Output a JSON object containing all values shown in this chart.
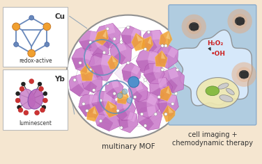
{
  "bg_color": "#f5e6d0",
  "left_box1_label": "Cu",
  "left_box1_sublabel": "redox-active",
  "left_box2_label": "Yb",
  "left_box2_sublabel": "luminescent",
  "center_label": "multinary MOF",
  "right_label1": "cell imaging +",
  "right_label2": "chemodynamic therapy",
  "h2o2_label": "H₂O₂",
  "oh_label": "•OH",
  "mof_circle_color": "#909090",
  "right_box_bg": "#b0cce0",
  "right_box_border": "#7090b0",
  "cu_node_color": "#f0a030",
  "cu_link_color": "#6888bb",
  "polyhedra_purple": "#cc80cc",
  "polyhedra_purple_dark": "#aa50aa",
  "polyhedra_purple_light": "#e8b0e8",
  "polyhedra_orange": "#f0a030",
  "polyhedra_orange_light": "#f8c870",
  "blue_node_color": "#5090cc",
  "blue_circle_color": "#6090bb",
  "connector_color": "#7090b0",
  "h2o2_color": "#cc2222",
  "oh_color": "#cc2222",
  "cell_bg": "#c8e0ee",
  "cell_body_color": "#f0f8ff",
  "cell_body_edge": "#909090",
  "nucleus_glow": "#e8a878",
  "nucleus_dark": "#555555",
  "organelle_yellow": "#f0e8b0",
  "organelle_green": "#88bb44",
  "mito_color": "#cccccc",
  "yb_center_color": "#cc88cc",
  "yb_center2": "#bb66bb",
  "yb_red_node": "#cc3333",
  "yb_black_node": "#222222"
}
